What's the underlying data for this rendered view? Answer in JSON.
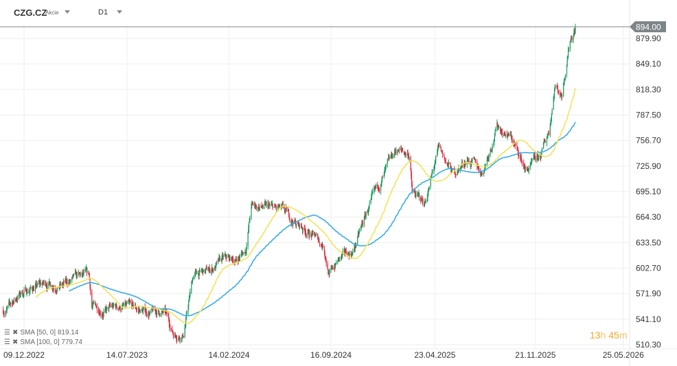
{
  "header": {
    "symbol": "CZG.CZ",
    "type": "Akcie",
    "timeframe": "D1"
  },
  "indicators": [
    {
      "label": "SMA [50, 0] 819.14",
      "color": "#f5e050"
    },
    {
      "label": "SMA [100, 0] 779.74",
      "color": "#29a9e8"
    }
  ],
  "timer": {
    "hours": "13",
    "h": "h",
    "minutes": "45",
    "m": "m"
  },
  "colors": {
    "up": "#1a9a5a",
    "down": "#e0283c",
    "grid": "#eeeeee",
    "price_tag": "#7d8589"
  },
  "chart_data": {
    "type": "candlestick",
    "current_price": "894.00",
    "y_ticks": [
      "879.90",
      "849.10",
      "818.30",
      "787.50",
      "756.70",
      "725.90",
      "695.10",
      "664.30",
      "633.50",
      "602.70",
      "571.90",
      "541.10",
      "510.30"
    ],
    "x_ticks": [
      "09.12.2022",
      "14.07.2023",
      "14.02.2024",
      "16.09.2024",
      "23.04.2025",
      "21.11.2025",
      "25.05.2026"
    ],
    "ylim": [
      510.3,
      879.9
    ],
    "xlim": [
      "2022-10-26",
      "2026-06-25"
    ],
    "close_approx": [
      [
        "2022-11-01",
        552
      ],
      [
        "2022-12-01",
        572
      ],
      [
        "2023-01-01",
        580
      ],
      [
        "2023-02-01",
        585
      ],
      [
        "2023-03-01",
        582
      ],
      [
        "2023-04-01",
        590
      ],
      [
        "2023-04-25",
        592
      ],
      [
        "2023-05-01",
        556
      ],
      [
        "2023-06-01",
        552
      ],
      [
        "2023-07-01",
        556
      ],
      [
        "2023-08-01",
        552
      ],
      [
        "2023-09-01",
        549
      ],
      [
        "2023-10-01",
        549
      ],
      [
        "2023-10-20",
        524
      ],
      [
        "2023-11-10",
        524
      ],
      [
        "2023-12-01",
        595
      ],
      [
        "2024-01-01",
        598
      ],
      [
        "2024-02-01",
        612
      ],
      [
        "2024-03-01",
        612
      ],
      [
        "2024-03-20",
        625
      ],
      [
        "2024-04-01",
        678
      ],
      [
        "2024-05-01",
        675
      ],
      [
        "2024-06-01",
        672
      ],
      [
        "2024-07-01",
        658
      ],
      [
        "2024-08-01",
        646
      ],
      [
        "2024-09-01",
        630
      ],
      [
        "2024-09-12",
        595
      ],
      [
        "2024-10-01",
        612
      ],
      [
        "2024-11-01",
        622
      ],
      [
        "2024-12-01",
        670
      ],
      [
        "2025-01-01",
        708
      ],
      [
        "2025-02-01",
        745
      ],
      [
        "2025-03-01",
        740
      ],
      [
        "2025-03-06",
        694
      ],
      [
        "2025-04-01",
        680
      ],
      [
        "2025-05-01",
        745
      ],
      [
        "2025-06-01",
        716
      ],
      [
        "2025-07-01",
        735
      ],
      [
        "2025-08-01",
        718
      ],
      [
        "2025-09-01",
        775
      ],
      [
        "2025-10-01",
        760
      ],
      [
        "2025-11-01",
        720
      ],
      [
        "2025-12-01",
        735
      ],
      [
        "2025-12-20",
        770
      ],
      [
        "2026-01-01",
        825
      ],
      [
        "2026-01-15",
        812
      ],
      [
        "2026-02-01",
        880
      ],
      [
        "2026-02-14",
        894
      ]
    ]
  }
}
